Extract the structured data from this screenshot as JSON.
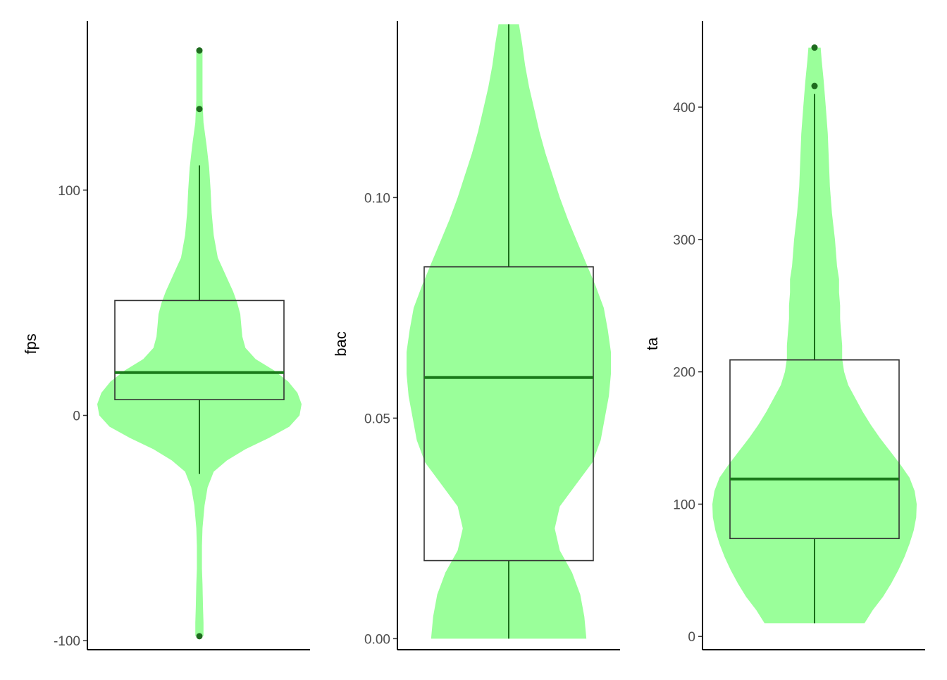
{
  "colors": {
    "violin_fill": "#9aff9a",
    "box_stroke": "#333333",
    "whisker": "#1a6e1a",
    "median": "#1a7a1a",
    "outlier": "#1e6b1e"
  },
  "chart_data": [
    {
      "type": "violin",
      "ylabel": "fps",
      "yticks": [
        -100,
        0,
        100
      ],
      "ytick_labels": [
        "-100",
        "0",
        "100"
      ],
      "ylim": [
        -104,
        175
      ],
      "box": {
        "q1": 7,
        "median": 19,
        "q3": 51,
        "whisker_low": -26,
        "whisker_high": 111
      },
      "outliers": [
        -98,
        136,
        162
      ],
      "violin_range": [
        -98,
        162
      ],
      "density": [
        [
          -98,
          0.04
        ],
        [
          -92,
          0.04
        ],
        [
          -85,
          0.035
        ],
        [
          -75,
          0.03
        ],
        [
          -68,
          0.025
        ],
        [
          -58,
          0.025
        ],
        [
          -50,
          0.03
        ],
        [
          -40,
          0.05
        ],
        [
          -32,
          0.08
        ],
        [
          -25,
          0.14
        ],
        [
          -20,
          0.27
        ],
        [
          -15,
          0.45
        ],
        [
          -10,
          0.68
        ],
        [
          -5,
          0.88
        ],
        [
          0,
          0.98
        ],
        [
          5,
          1.0
        ],
        [
          10,
          0.96
        ],
        [
          15,
          0.87
        ],
        [
          20,
          0.73
        ],
        [
          25,
          0.55
        ],
        [
          30,
          0.45
        ],
        [
          35,
          0.42
        ],
        [
          40,
          0.41
        ],
        [
          45,
          0.4
        ],
        [
          50,
          0.37
        ],
        [
          55,
          0.33
        ],
        [
          60,
          0.28
        ],
        [
          70,
          0.18
        ],
        [
          80,
          0.14
        ],
        [
          90,
          0.12
        ],
        [
          100,
          0.11
        ],
        [
          110,
          0.095
        ],
        [
          120,
          0.07
        ],
        [
          130,
          0.04
        ],
        [
          140,
          0.03
        ],
        [
          150,
          0.03
        ],
        [
          162,
          0.03
        ]
      ]
    },
    {
      "type": "violin",
      "ylabel": "bac",
      "yticks": [
        0,
        0.05,
        0.1
      ],
      "ytick_labels": [
        "0.00",
        "0.05",
        "0.10"
      ],
      "ylim": [
        -0.0025,
        0.14
      ],
      "box": {
        "q1": 0.0177,
        "median": 0.0592,
        "q3": 0.0843,
        "whisker_low": 0,
        "whisker_high": 0.1393
      },
      "outliers": [],
      "violin_range": [
        0,
        0.1393
      ],
      "density": [
        [
          0,
          0.76
        ],
        [
          0.005,
          0.74
        ],
        [
          0.01,
          0.7
        ],
        [
          0.015,
          0.62
        ],
        [
          0.02,
          0.5
        ],
        [
          0.025,
          0.45
        ],
        [
          0.03,
          0.5
        ],
        [
          0.035,
          0.66
        ],
        [
          0.04,
          0.82
        ],
        [
          0.045,
          0.9
        ],
        [
          0.05,
          0.94
        ],
        [
          0.055,
          0.98
        ],
        [
          0.06,
          1.0
        ],
        [
          0.065,
          1.0
        ],
        [
          0.07,
          0.97
        ],
        [
          0.075,
          0.93
        ],
        [
          0.08,
          0.85
        ],
        [
          0.085,
          0.76
        ],
        [
          0.09,
          0.67
        ],
        [
          0.095,
          0.58
        ],
        [
          0.1,
          0.5
        ],
        [
          0.105,
          0.43
        ],
        [
          0.11,
          0.36
        ],
        [
          0.115,
          0.3
        ],
        [
          0.12,
          0.25
        ],
        [
          0.125,
          0.2
        ],
        [
          0.13,
          0.16
        ],
        [
          0.135,
          0.13
        ],
        [
          0.1393,
          0.1
        ]
      ]
    },
    {
      "type": "violin",
      "ylabel": "ta",
      "yticks": [
        0,
        100,
        200,
        300,
        400
      ],
      "ytick_labels": [
        "0",
        "100",
        "200",
        "300",
        "400"
      ],
      "ylim": [
        -10,
        465
      ],
      "box": {
        "q1": 74,
        "median": 119,
        "q3": 209,
        "whisker_low": 10,
        "whisker_high": 410
      },
      "outliers": [
        416,
        445
      ],
      "violin_range": [
        10,
        445
      ],
      "density": [
        [
          10,
          0.49
        ],
        [
          20,
          0.57
        ],
        [
          30,
          0.67
        ],
        [
          40,
          0.75
        ],
        [
          50,
          0.82
        ],
        [
          60,
          0.88
        ],
        [
          70,
          0.93
        ],
        [
          80,
          0.97
        ],
        [
          90,
          0.995
        ],
        [
          100,
          1.0
        ],
        [
          110,
          0.98
        ],
        [
          120,
          0.93
        ],
        [
          130,
          0.84
        ],
        [
          140,
          0.74
        ],
        [
          150,
          0.64
        ],
        [
          160,
          0.55
        ],
        [
          170,
          0.47
        ],
        [
          180,
          0.4
        ],
        [
          190,
          0.33
        ],
        [
          200,
          0.29
        ],
        [
          210,
          0.27
        ],
        [
          220,
          0.27
        ],
        [
          230,
          0.26
        ],
        [
          240,
          0.25
        ],
        [
          250,
          0.25
        ],
        [
          260,
          0.24
        ],
        [
          270,
          0.24
        ],
        [
          280,
          0.22
        ],
        [
          300,
          0.2
        ],
        [
          320,
          0.17
        ],
        [
          340,
          0.15
        ],
        [
          360,
          0.14
        ],
        [
          380,
          0.13
        ],
        [
          400,
          0.11
        ],
        [
          420,
          0.09
        ],
        [
          435,
          0.07
        ],
        [
          445,
          0.06
        ]
      ]
    }
  ]
}
